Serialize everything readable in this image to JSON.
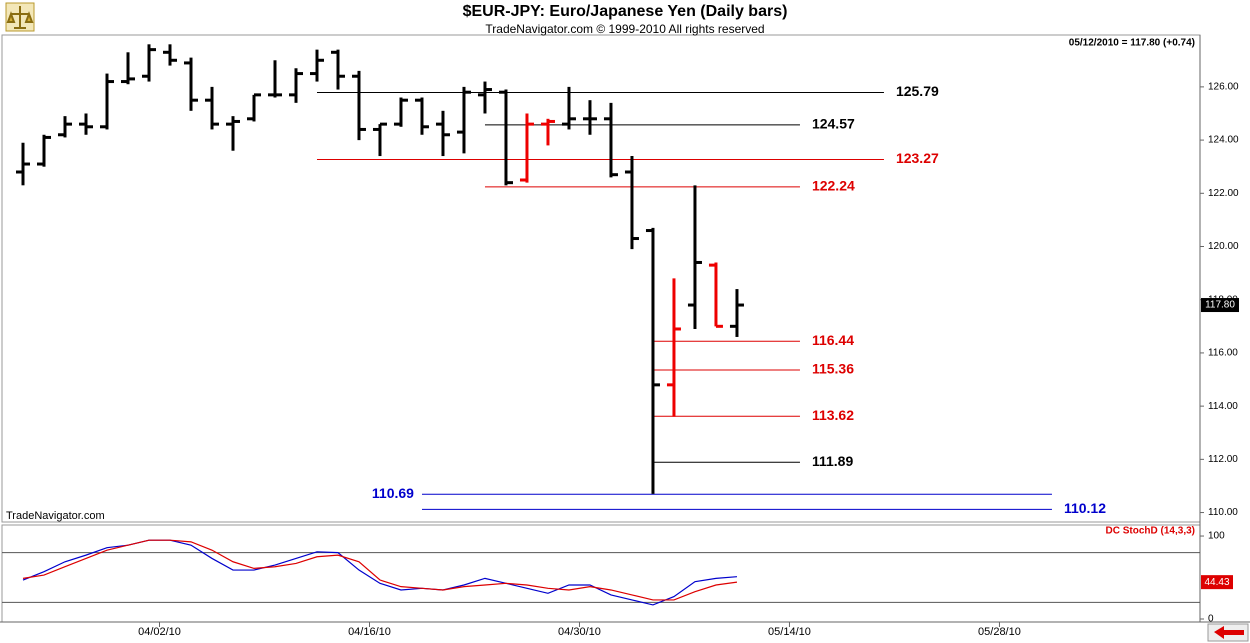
{
  "chart_data": [
    {
      "type": "ohlc",
      "title": "$EUR-JPY:  Euro/Japanese Yen  (Daily bars)",
      "subtitle": "TradeNavigator.com © 1999-2010 All rights reserved",
      "status": "05/12/2010 = 117.80 (+0.74)",
      "watermark": "TradeNavigator.com",
      "categories": [
        null,
        null,
        null,
        null,
        null,
        null,
        null,
        null,
        null,
        null,
        null,
        null,
        null,
        null,
        null,
        null,
        null,
        null,
        null,
        null,
        null,
        null,
        null,
        null,
        null,
        null,
        null,
        null,
        null,
        null,
        null,
        null,
        null,
        null,
        null
      ],
      "open": [
        122.8,
        123.1,
        124.2,
        124.6,
        124.5,
        126.2,
        126.4,
        127.3,
        126.9,
        125.5,
        124.6,
        124.8,
        125.7,
        125.7,
        126.5,
        127.3,
        126.4,
        124.4,
        124.6,
        125.5,
        124.6,
        124.3,
        125.7,
        125.8,
        122.5,
        124.6,
        124.6,
        124.8,
        124.8,
        122.8,
        120.6,
        114.8,
        117.8,
        119.3,
        117.0
      ],
      "high": [
        123.9,
        124.2,
        124.9,
        125.0,
        126.5,
        127.3,
        127.6,
        127.6,
        127.1,
        126.0,
        124.9,
        125.7,
        127.0,
        126.7,
        127.4,
        127.4,
        126.6,
        124.6,
        125.6,
        125.6,
        125.1,
        126.0,
        126.2,
        125.9,
        125.0,
        124.8,
        126.0,
        125.5,
        125.4,
        123.4,
        120.7,
        118.8,
        122.3,
        119.4,
        118.4
      ],
      "low": [
        122.3,
        123.0,
        124.1,
        124.2,
        124.4,
        126.1,
        126.2,
        126.8,
        125.1,
        124.4,
        123.6,
        124.7,
        125.6,
        125.4,
        126.2,
        125.9,
        124.0,
        123.4,
        124.5,
        124.2,
        123.4,
        123.5,
        125.0,
        122.3,
        122.4,
        123.8,
        124.4,
        124.2,
        122.6,
        119.9,
        110.7,
        113.6,
        116.9,
        117.0,
        116.6
      ],
      "close": [
        123.1,
        124.1,
        124.6,
        124.5,
        126.2,
        126.3,
        127.4,
        127.0,
        125.5,
        124.6,
        124.7,
        125.7,
        125.7,
        126.5,
        127.0,
        126.4,
        124.4,
        124.6,
        125.5,
        124.5,
        124.2,
        125.8,
        125.9,
        122.4,
        124.6,
        124.7,
        124.8,
        124.8,
        122.7,
        120.3,
        114.8,
        116.9,
        119.4,
        117.0,
        117.8
      ],
      "colors": [
        "#000000",
        "#000000",
        "#000000",
        "#000000",
        "#000000",
        "#000000",
        "#000000",
        "#000000",
        "#000000",
        "#000000",
        "#000000",
        "#000000",
        "#000000",
        "#000000",
        "#000000",
        "#000000",
        "#000000",
        "#000000",
        "#000000",
        "#000000",
        "#000000",
        "#000000",
        "#000000",
        "#000000",
        "#ee0000",
        "#ee0000",
        "#000000",
        "#000000",
        "#000000",
        "#000000",
        "#000000",
        "#ee0000",
        "#000000",
        "#ee0000",
        "#000000"
      ],
      "ylim": [
        109.72,
        127.95
      ],
      "yticks": [
        {
          "value": 110,
          "label": "110.00"
        },
        {
          "value": 112,
          "label": "112.00"
        },
        {
          "value": 114,
          "label": "114.00"
        },
        {
          "value": 116,
          "label": "116.00"
        },
        {
          "value": 118,
          "label": "118.00"
        },
        {
          "value": 120,
          "label": "120.00"
        },
        {
          "value": 122,
          "label": "122.00"
        },
        {
          "value": 124,
          "label": "124.00"
        },
        {
          "value": 126,
          "label": "126.00"
        }
      ],
      "xlim": [
        -1,
        56.05
      ],
      "xticks": [
        {
          "value": 6.5,
          "label": "04/02/10"
        },
        {
          "value": 16.5,
          "label": "04/16/10"
        },
        {
          "value": 26.5,
          "label": "04/30/10"
        },
        {
          "value": 36.5,
          "label": "05/14/10"
        },
        {
          "value": 46.5,
          "label": "05/28/10"
        }
      ],
      "price_marker": {
        "value": 117.8,
        "label": "117.80"
      },
      "levels": [
        {
          "value": 125.79,
          "color": "#000000",
          "start": 14,
          "end": 41,
          "side": "right"
        },
        {
          "value": 124.57,
          "color": "#000000",
          "start": 22,
          "end": 37,
          "side": "right"
        },
        {
          "value": 123.27,
          "color": "#dd0000",
          "start": 14,
          "end": 41,
          "side": "right"
        },
        {
          "value": 122.24,
          "color": "#dd0000",
          "start": 22,
          "end": 37,
          "side": "right"
        },
        {
          "value": 116.44,
          "color": "#dd0000",
          "start": 30,
          "end": 37,
          "side": "right"
        },
        {
          "value": 115.36,
          "color": "#dd0000",
          "start": 30,
          "end": 37,
          "side": "right"
        },
        {
          "value": 113.62,
          "color": "#dd0000",
          "start": 30,
          "end": 37,
          "side": "right"
        },
        {
          "value": 111.89,
          "color": "#000000",
          "start": 30,
          "end": 37,
          "side": "right"
        },
        {
          "value": 110.69,
          "color": "#0000cc",
          "start": 19,
          "end": 49,
          "side": "left"
        },
        {
          "value": 110.12,
          "color": "#0000cc",
          "start": 19,
          "end": 49,
          "side": "right"
        }
      ]
    },
    {
      "type": "line",
      "title": "DC StochD (14,3,3)",
      "ylim": [
        -3.6,
        113.3
      ],
      "yticks": [
        0,
        100
      ],
      "guides": [
        80,
        20
      ],
      "series": [
        {
          "color": "#0000cc",
          "values": [
            47,
            57,
            69,
            77,
            86,
            89,
            95,
            95,
            89,
            73,
            59,
            59,
            65,
            73,
            81,
            80,
            59,
            43,
            35,
            37,
            35,
            41,
            49,
            43,
            37,
            31,
            41,
            41,
            29,
            23,
            17,
            27,
            45,
            49,
            51
          ]
        },
        {
          "color": "#dd0000",
          "values": [
            49,
            53,
            63,
            73,
            83,
            89,
            95,
            95,
            93,
            83,
            69,
            61,
            63,
            67,
            75,
            77,
            69,
            47,
            39,
            37,
            35,
            39,
            41,
            43,
            41,
            37,
            35,
            39,
            35,
            29,
            23,
            23,
            33,
            41,
            44.43
          ]
        }
      ]
    }
  ]
}
